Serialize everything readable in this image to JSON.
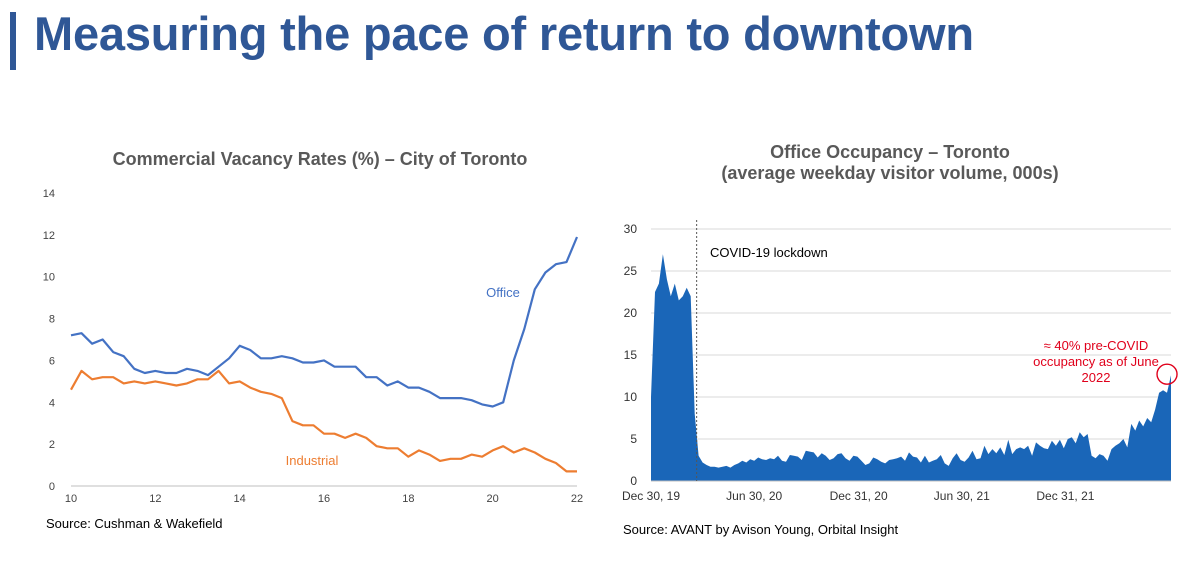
{
  "page": {
    "title": "Measuring the pace of return to downtown"
  },
  "colors": {
    "brand": "#2f5796",
    "office": "#4472c4",
    "industrial": "#ed7d31",
    "occupancy": "#1a66b8",
    "annotation": "#e0001b"
  },
  "chart_data": [
    {
      "id": "vacancy",
      "type": "line",
      "title": "Commercial Vacancy Rates (%) – City of Toronto",
      "source": "Source: Cushman & Wakefield",
      "xlabel": "",
      "ylabel": "",
      "xlim": [
        10,
        22
      ],
      "ylim": [
        0,
        14
      ],
      "xticks": [
        10,
        12,
        14,
        16,
        18,
        20,
        22
      ],
      "yticks": [
        0,
        2,
        4,
        6,
        8,
        10,
        12,
        14
      ],
      "grid": false,
      "series": [
        {
          "name": "Office",
          "color": "#4472c4",
          "x": [
            10.0,
            10.25,
            10.5,
            10.75,
            11.0,
            11.25,
            11.5,
            11.75,
            12.0,
            12.25,
            12.5,
            12.75,
            13.0,
            13.25,
            13.5,
            13.75,
            14.0,
            14.25,
            14.5,
            14.75,
            15.0,
            15.25,
            15.5,
            15.75,
            16.0,
            16.25,
            16.5,
            16.75,
            17.0,
            17.25,
            17.5,
            17.75,
            18.0,
            18.25,
            18.5,
            18.75,
            19.0,
            19.25,
            19.5,
            19.75,
            20.0,
            20.25,
            20.5,
            20.75,
            21.0,
            21.25,
            21.5,
            21.75,
            22.0
          ],
          "values": [
            7.2,
            7.3,
            6.8,
            7.0,
            6.4,
            6.2,
            5.6,
            5.4,
            5.5,
            5.4,
            5.4,
            5.6,
            5.5,
            5.3,
            5.7,
            6.1,
            6.7,
            6.5,
            6.1,
            6.1,
            6.2,
            6.1,
            5.9,
            5.9,
            6.0,
            5.7,
            5.7,
            5.7,
            5.2,
            5.2,
            4.8,
            5.0,
            4.7,
            4.7,
            4.5,
            4.2,
            4.2,
            4.2,
            4.1,
            3.9,
            3.8,
            4.0,
            6.0,
            7.5,
            9.4,
            10.2,
            10.6,
            10.7,
            11.9
          ]
        },
        {
          "name": "Industrial",
          "color": "#ed7d31",
          "x": [
            10.0,
            10.25,
            10.5,
            10.75,
            11.0,
            11.25,
            11.5,
            11.75,
            12.0,
            12.25,
            12.5,
            12.75,
            13.0,
            13.25,
            13.5,
            13.75,
            14.0,
            14.25,
            14.5,
            14.75,
            15.0,
            15.25,
            15.5,
            15.75,
            16.0,
            16.25,
            16.5,
            16.75,
            17.0,
            17.25,
            17.5,
            17.75,
            18.0,
            18.25,
            18.5,
            18.75,
            19.0,
            19.25,
            19.5,
            19.75,
            20.0,
            20.25,
            20.5,
            20.75,
            21.0,
            21.25,
            21.5,
            21.75,
            22.0
          ],
          "values": [
            4.6,
            5.5,
            5.1,
            5.2,
            5.2,
            4.9,
            5.0,
            4.9,
            5.0,
            4.9,
            4.8,
            4.9,
            5.1,
            5.1,
            5.5,
            4.9,
            5.0,
            4.7,
            4.5,
            4.4,
            4.2,
            3.1,
            2.9,
            2.9,
            2.5,
            2.5,
            2.3,
            2.5,
            2.3,
            1.9,
            1.8,
            1.8,
            1.4,
            1.7,
            1.5,
            1.2,
            1.3,
            1.3,
            1.5,
            1.4,
            1.7,
            1.9,
            1.6,
            1.8,
            1.6,
            1.3,
            1.1,
            0.7,
            0.7
          ]
        }
      ],
      "labels": {
        "office": "Office",
        "industrial": "Industrial"
      }
    },
    {
      "id": "occupancy",
      "type": "area",
      "title": "Office Occupancy – Toronto",
      "subtitle": "(average weekday visitor volume, 000s)",
      "source": "Source: AVANT by Avison Young, Orbital Insight",
      "xlabel": "",
      "ylabel": "",
      "ylim": [
        0,
        30
      ],
      "yticks": [
        0,
        5,
        10,
        15,
        20,
        25,
        30
      ],
      "xlim_weeks": [
        0,
        131
      ],
      "xticks": [
        {
          "week": 0,
          "label": "Dec 30, 19"
        },
        {
          "week": 26,
          "label": "Jun 30, 20"
        },
        {
          "week": 52.3,
          "label": "Dec 31, 20"
        },
        {
          "week": 78.3,
          "label": "Jun 30, 21"
        },
        {
          "week": 104.4,
          "label": "Dec 31, 21"
        }
      ],
      "grid": true,
      "lockdown": {
        "week": 11.5,
        "label": "COVID-19 lockdown"
      },
      "annotation": {
        "text": "≈ 40% pre-COVID occupancy as of June 2022",
        "week": 130,
        "value": 12.6
      },
      "series": [
        {
          "name": "Office occupancy",
          "x_week": [
            0,
            1,
            2,
            3,
            4,
            5,
            6,
            7,
            8,
            9,
            10,
            11,
            12,
            13,
            14,
            15,
            16,
            17,
            18,
            19,
            20,
            21,
            22,
            23,
            24,
            25,
            26,
            27,
            28,
            29,
            30,
            31,
            32,
            33,
            34,
            35,
            36,
            37,
            38,
            39,
            40,
            41,
            42,
            43,
            44,
            45,
            46,
            47,
            48,
            49,
            50,
            51,
            52,
            53,
            54,
            55,
            56,
            57,
            58,
            59,
            60,
            61,
            62,
            63,
            64,
            65,
            66,
            67,
            68,
            69,
            70,
            71,
            72,
            73,
            74,
            75,
            76,
            77,
            78,
            79,
            80,
            81,
            82,
            83,
            84,
            85,
            86,
            87,
            88,
            89,
            90,
            91,
            92,
            93,
            94,
            95,
            96,
            97,
            98,
            99,
            100,
            101,
            102,
            103,
            104,
            105,
            106,
            107,
            108,
            109,
            110,
            111,
            112,
            113,
            114,
            115,
            116,
            117,
            118,
            119,
            120,
            121,
            122,
            123,
            124,
            125,
            126,
            127,
            128,
            129,
            130,
            131
          ],
          "values": [
            10.0,
            22.5,
            23.5,
            27.0,
            24.0,
            22.0,
            23.5,
            21.5,
            22.0,
            23.0,
            22.0,
            8.0,
            3.0,
            2.2,
            1.9,
            1.7,
            1.7,
            1.6,
            1.7,
            1.8,
            1.6,
            1.9,
            2.1,
            2.4,
            2.2,
            2.6,
            2.4,
            2.8,
            2.6,
            2.5,
            2.7,
            2.6,
            3.0,
            2.4,
            2.3,
            3.1,
            3.0,
            2.9,
            2.5,
            3.6,
            3.5,
            3.4,
            2.8,
            3.3,
            3.0,
            2.5,
            2.7,
            3.2,
            3.3,
            2.7,
            2.4,
            3.0,
            2.9,
            2.4,
            1.9,
            2.1,
            2.8,
            2.6,
            2.3,
            2.1,
            2.5,
            2.6,
            2.7,
            2.9,
            2.4,
            3.4,
            2.9,
            2.8,
            2.2,
            3.0,
            2.2,
            2.4,
            2.6,
            3.1,
            2.1,
            1.8,
            2.7,
            3.3,
            2.5,
            2.3,
            2.8,
            3.6,
            2.6,
            2.7,
            4.2,
            3.2,
            3.8,
            3.3,
            4.0,
            3.1,
            4.9,
            3.2,
            3.8,
            4.0,
            3.8,
            4.2,
            3.0,
            4.6,
            4.2,
            3.9,
            3.8,
            4.8,
            4.2,
            4.9,
            3.9,
            5.0,
            5.2,
            4.5,
            5.8,
            5.2,
            5.6,
            3.0,
            2.7,
            3.2,
            3.0,
            2.4,
            3.8,
            4.2,
            4.5,
            5.0,
            4.0,
            6.8,
            6.0,
            7.2,
            6.5,
            7.5,
            7.0,
            8.5,
            10.5,
            10.8,
            10.5,
            12.6
          ]
        }
      ]
    }
  ]
}
